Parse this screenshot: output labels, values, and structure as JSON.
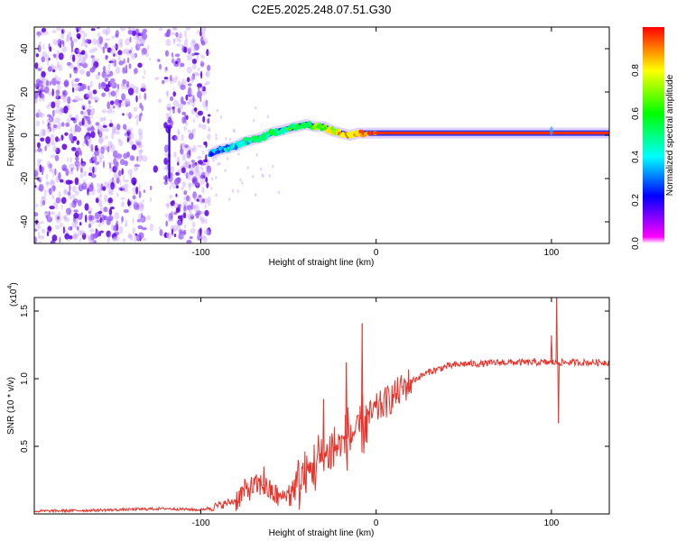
{
  "title": "C2E5.2025.248.07.51.G30",
  "chart_data": [
    {
      "type": "heatmap",
      "title": "C2E5.2025.248.07.51.G30",
      "xlabel": "Height of straight line (km)",
      "ylabel": "Frequency (Hz)",
      "xlim": [
        -195,
        133
      ],
      "ylim": [
        -50,
        50
      ],
      "xticks": [
        -100,
        0,
        100
      ],
      "xtick_labels": [
        "-100",
        "0",
        "100"
      ],
      "yticks": [
        -40,
        -20,
        0,
        20,
        40
      ],
      "ytick_labels": [
        "-40",
        "-20",
        "0",
        "20",
        "40"
      ],
      "colorbar": {
        "label": "Normalized spectral amplitude",
        "range": [
          0,
          1
        ],
        "ticks": [
          0,
          0.2,
          0.4,
          0.6,
          0.8
        ],
        "tick_labels": [
          "0.0",
          "0.2",
          "0.4",
          "0.6",
          "0.8"
        ],
        "colors": [
          "#ff00ff",
          "#0000ff",
          "#00ffff",
          "#00ff00",
          "#ffff00",
          "#ff0000"
        ]
      },
      "features": {
        "noise_region_x": [
          -195,
          -95
        ],
        "noise_gap_x": [
          -132,
          -120
        ],
        "tone_track": {
          "x": [
            -95,
            -90,
            -85,
            -80,
            -75,
            -70,
            -65,
            -60,
            -55,
            -50,
            -45,
            -40,
            -35,
            -30,
            -25,
            -20,
            -15,
            -10,
            -5,
            0,
            20,
            40,
            60,
            80,
            100,
            120,
            133
          ],
          "frequency_hz": [
            -9,
            -7,
            -6,
            -5,
            -3,
            -2,
            -1,
            1,
            2,
            3,
            4,
            5,
            4,
            4,
            2,
            1,
            0,
            1,
            1,
            1,
            1,
            1,
            1,
            1,
            1,
            1,
            1
          ],
          "amplitude": [
            0.3,
            0.35,
            0.35,
            0.4,
            0.42,
            0.45,
            0.45,
            0.5,
            0.5,
            0.55,
            0.55,
            0.6,
            0.65,
            0.7,
            0.75,
            0.8,
            0.85,
            0.9,
            0.92,
            0.95,
            0.95,
            0.95,
            0.95,
            0.95,
            0.95,
            0.95,
            0.95
          ]
        }
      }
    },
    {
      "type": "line",
      "xlabel": "Height of straight line (km)",
      "ylabel": "SNR (10 * v/v)",
      "y_multiplier_label": "(x10",
      "y_multiplier_exponent": "4",
      "xlim": [
        -195,
        133
      ],
      "ylim": [
        0,
        1.6
      ],
      "xticks": [
        -100,
        0,
        100
      ],
      "xtick_labels": [
        "-100",
        "0",
        "100"
      ],
      "yticks": [
        0.5,
        1.0,
        1.5
      ],
      "ytick_labels": [
        "0.5",
        "1.0",
        "1.5"
      ],
      "line_color": "#e8322a",
      "series": [
        {
          "name": "SNR",
          "x": [
            -195,
            -150,
            -120,
            -100,
            -90,
            -80,
            -75,
            -70,
            -65,
            -60,
            -55,
            -50,
            -45,
            -40,
            -35,
            -30,
            -25,
            -20,
            -15,
            -10,
            -5,
            0,
            10,
            20,
            30,
            40,
            50,
            60,
            70,
            80,
            90,
            100,
            103,
            104,
            105,
            110,
            120,
            133
          ],
          "y": [
            0.02,
            0.03,
            0.04,
            0.03,
            0.06,
            0.1,
            0.17,
            0.2,
            0.22,
            0.16,
            0.12,
            0.15,
            0.22,
            0.3,
            0.36,
            0.42,
            0.48,
            0.52,
            0.58,
            0.63,
            0.7,
            0.77,
            0.87,
            0.98,
            1.05,
            1.09,
            1.11,
            1.11,
            1.12,
            1.12,
            1.12,
            1.12,
            1.12,
            1.12,
            1.12,
            1.12,
            1.12,
            1.12
          ]
        }
      ],
      "annotations": {
        "spikes": [
          {
            "x": -64,
            "y": 0.35
          },
          {
            "x": -30,
            "y": 0.85
          },
          {
            "x": -17,
            "y": 1.12
          },
          {
            "x": -8,
            "y": 1.41
          },
          {
            "x": 100,
            "y": 1.32
          },
          {
            "x": 103,
            "y": 1.61
          },
          {
            "x": 104,
            "y": 0.67
          }
        ]
      }
    }
  ]
}
